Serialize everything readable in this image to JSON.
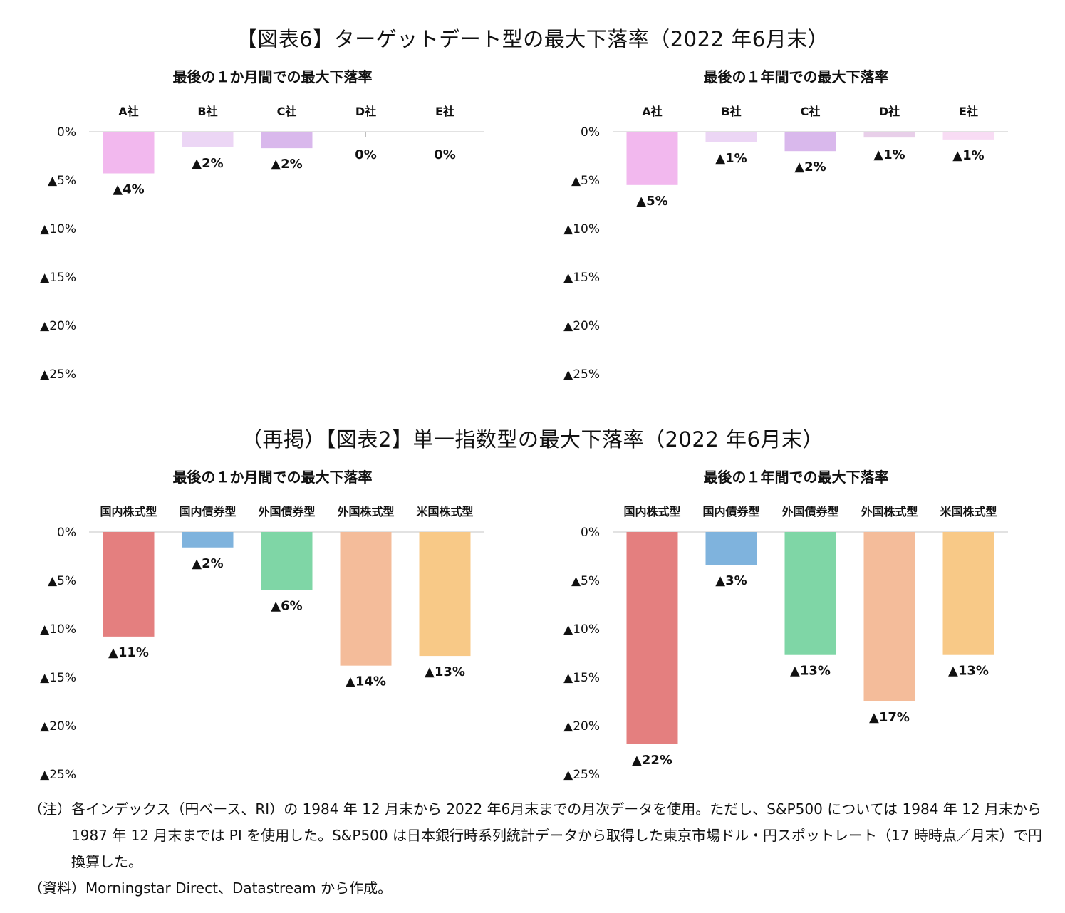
{
  "figure1": {
    "title": "【図表6】ターゲットデート型の最大下落率（2022 年6月末）"
  },
  "figure2": {
    "title": "（再掲）【図表2】単一指数型の最大下落率（2022 年6月末）"
  },
  "chart_data": [
    {
      "type": "bar",
      "title": "最後の１か月間での最大下落率",
      "categories": [
        "A社",
        "B社",
        "C社",
        "D社",
        "E社"
      ],
      "values": [
        -4.3,
        -1.6,
        -1.7,
        0,
        0
      ],
      "data_labels": [
        "▲4%",
        "▲2%",
        "▲2%",
        "0%",
        "0%"
      ],
      "colors": [
        "#f2b8ee",
        "#ecd6f5",
        "#d9b8ec",
        "#d0d0d0",
        "#d0d0d0"
      ],
      "ylim": [
        -25,
        0
      ],
      "yticks": [
        0,
        -5,
        -10,
        -15,
        -20,
        -25
      ],
      "ytick_labels": [
        "0%",
        "▲5%",
        "▲10%",
        "▲15%",
        "▲20%",
        "▲25%"
      ],
      "xaxis_position": "top",
      "grid": false,
      "legend": "none"
    },
    {
      "type": "bar",
      "title": "最後の１年間での最大下落率",
      "categories": [
        "A社",
        "B社",
        "C社",
        "D社",
        "E社"
      ],
      "values": [
        -5.5,
        -1.1,
        -2.0,
        -0.6,
        -0.8
      ],
      "data_labels": [
        "▲5%",
        "▲1%",
        "▲2%",
        "▲1%",
        "▲1%"
      ],
      "colors": [
        "#f2b8ee",
        "#ecd6f5",
        "#d9b8ec",
        "#e8cfe9",
        "#f8dcf4"
      ],
      "ylim": [
        -25,
        0
      ],
      "yticks": [
        0,
        -5,
        -10,
        -15,
        -20,
        -25
      ],
      "ytick_labels": [
        "0%",
        "▲5%",
        "▲10%",
        "▲15%",
        "▲20%",
        "▲25%"
      ],
      "xaxis_position": "top",
      "grid": false,
      "legend": "none"
    },
    {
      "type": "bar",
      "title": "最後の１か月間での最大下落率",
      "categories": [
        "国内株式型",
        "国内債券型",
        "外国債券型",
        "外国株式型",
        "米国株式型"
      ],
      "values": [
        -10.8,
        -1.6,
        -6.0,
        -13.8,
        -12.8
      ],
      "data_labels": [
        "▲11%",
        "▲2%",
        "▲6%",
        "▲14%",
        "▲13%"
      ],
      "colors": [
        "#e47f7f",
        "#7fb3dd",
        "#7fd6a6",
        "#f4bc9a",
        "#f8c987"
      ],
      "ylim": [
        -25,
        0
      ],
      "yticks": [
        0,
        -5,
        -10,
        -15,
        -20,
        -25
      ],
      "ytick_labels": [
        "0%",
        "▲5%",
        "▲10%",
        "▲15%",
        "▲20%",
        "▲25%"
      ],
      "xaxis_position": "top",
      "grid": false,
      "legend": "none"
    },
    {
      "type": "bar",
      "title": "最後の１年間での最大下落率",
      "categories": [
        "国内株式型",
        "国内債券型",
        "外国債券型",
        "外国株式型",
        "米国株式型"
      ],
      "values": [
        -21.9,
        -3.4,
        -12.7,
        -17.5,
        -12.7
      ],
      "data_labels": [
        "▲22%",
        "▲3%",
        "▲13%",
        "▲17%",
        "▲13%"
      ],
      "colors": [
        "#e47f7f",
        "#7fb3dd",
        "#7fd6a6",
        "#f4bc9a",
        "#f8c987"
      ],
      "ylim": [
        -25,
        0
      ],
      "yticks": [
        0,
        -5,
        -10,
        -15,
        -20,
        -25
      ],
      "ytick_labels": [
        "0%",
        "▲5%",
        "▲10%",
        "▲15%",
        "▲20%",
        "▲25%"
      ],
      "xaxis_position": "top",
      "grid": false,
      "legend": "none"
    }
  ],
  "notes": {
    "note_head": "（注）",
    "note_text": "各インデックス（円ベース、RI）の 1984 年 12 月末から 2022 年6月末までの月次データを使用。ただし、S&P500 については 1984 年 12 月末から 1987 年 12 月末までは PI を使用した。S&P500 は日本銀行時系列統計データから取得した東京市場ドル・円スポットレート（17 時時点／月末）で円換算した。",
    "source_head": "（資料）",
    "source_text": "Morningstar Direct、Datastream から作成。"
  }
}
